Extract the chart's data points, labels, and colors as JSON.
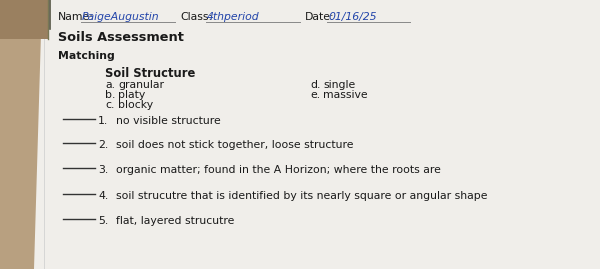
{
  "wood_color": "#b8a080",
  "paper_color": "#f0eeea",
  "text_color": "#1a1a1a",
  "handwriting_color": "#2244aa",
  "line_color": "#555555",
  "name_label": "Name:",
  "name_value": "PaigeAugustin",
  "class_label": "Class:",
  "class_value": "4thperiod",
  "date_label": "Date:",
  "date_value": "01/16/25",
  "section_title": "Soils Assessment",
  "subsection": "Matching",
  "soil_structure_header": "Soil Structure",
  "left_items": [
    [
      "a.",
      "granular"
    ],
    [
      "b.",
      "platy"
    ],
    [
      "c.",
      "blocky"
    ]
  ],
  "right_items": [
    [
      "d.",
      "single"
    ],
    [
      "e.",
      "massive"
    ]
  ],
  "questions": [
    "no visible structure",
    "soil does not stick together, loose structure",
    "organic matter; found in the A Horizon; where the roots are",
    "soil strucutre that is identified by its nearly square or angular shape",
    "flat, layered strucutre"
  ]
}
